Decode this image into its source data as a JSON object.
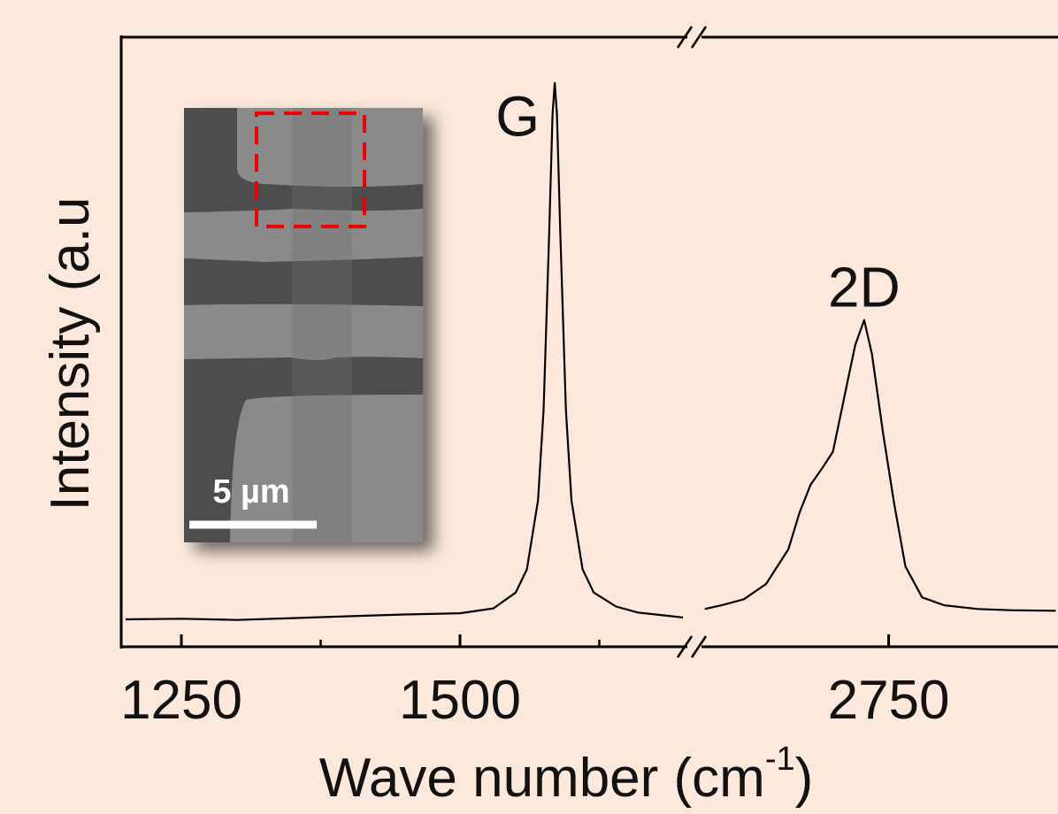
{
  "chart_data": {
    "type": "line",
    "y_label": "Intensity (a.u",
    "x_label": "Wave number (cm",
    "x_label_sup": "-1",
    "x_label_end": ")",
    "ylim": [
      0,
      100
    ],
    "x_segments": [
      {
        "xlim": [
          1196,
          1704
        ],
        "xticks": [
          1250,
          1500
        ],
        "minor_xticks": [
          1375,
          1625
        ]
      },
      {
        "xlim": [
          2582,
          2902
        ],
        "xticks": [
          2750
        ],
        "minor_xticks": []
      }
    ],
    "series": [
      {
        "color": "#000000",
        "x": [
          1200,
          1250,
          1300,
          1350,
          1400,
          1450,
          1500,
          1530,
          1550,
          1560,
          1570,
          1575,
          1580,
          1583,
          1585,
          1587,
          1590,
          1595,
          1600,
          1610,
          1620,
          1640,
          1660,
          1700
        ],
        "values": [
          4.5,
          4.6,
          4.4,
          4.7,
          5.0,
          5.3,
          5.5,
          6.3,
          8.9,
          12.7,
          24,
          38.9,
          67.8,
          87.3,
          92.5,
          87.3,
          67.8,
          38.9,
          24,
          12.7,
          8.9,
          6.6,
          5.6,
          4.8
        ]
      },
      {
        "color": "#000000",
        "x": [
          2585,
          2600,
          2620,
          2640,
          2660,
          2670,
          2680,
          2690,
          2700,
          2710,
          2720,
          2728,
          2735,
          2745,
          2755,
          2765,
          2780,
          2800,
          2830,
          2860,
          2900
        ],
        "values": [
          6.2,
          6.8,
          7.8,
          10.3,
          16,
          22,
          26.6,
          29.2,
          32,
          40.8,
          49.5,
          53.6,
          48,
          35,
          23.4,
          13.2,
          8.1,
          6.8,
          6.2,
          6.0,
          5.9
        ]
      }
    ],
    "annotations": [
      {
        "text": "G",
        "x": 1585,
        "segment": 0
      },
      {
        "text": "2D",
        "x": 2728,
        "segment": 1
      }
    ],
    "inset": {
      "scale_label": "5 µm"
    }
  }
}
